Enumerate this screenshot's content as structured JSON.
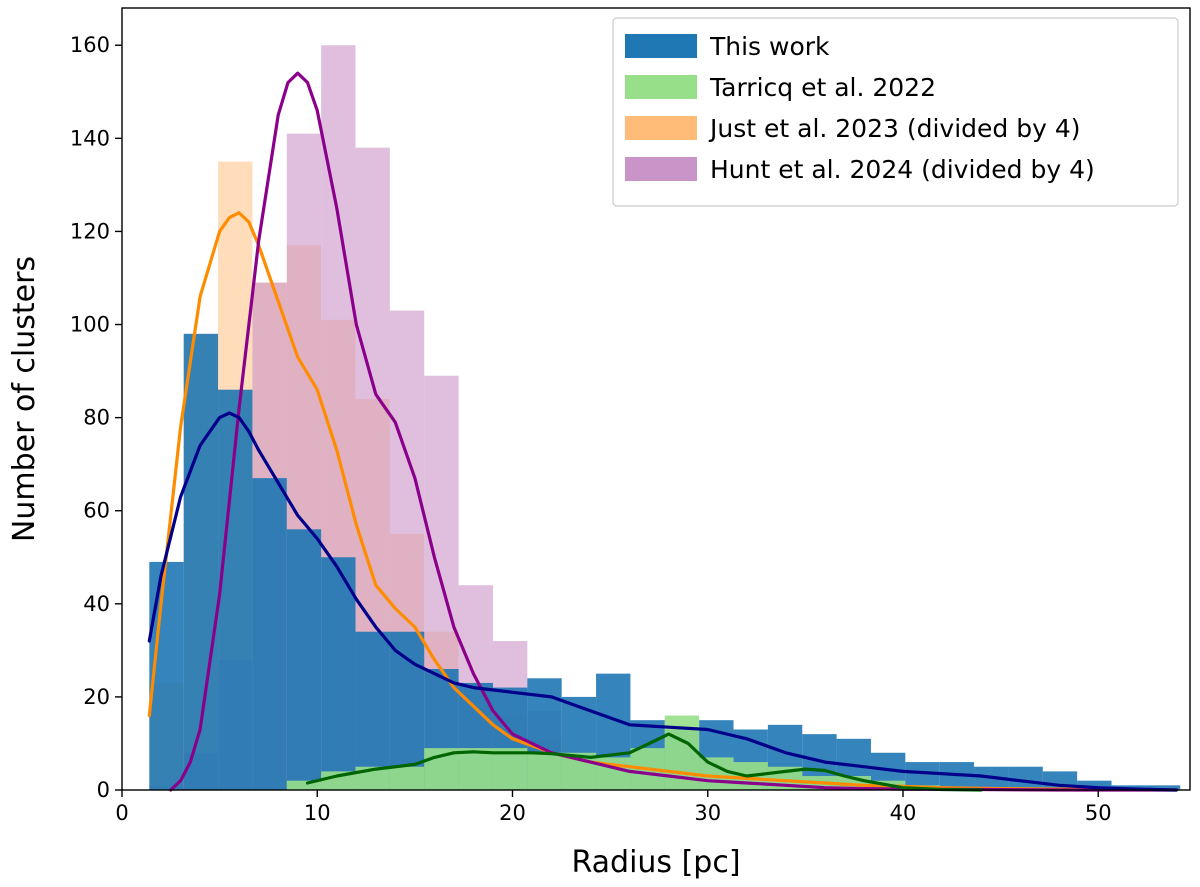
{
  "chart_data": {
    "type": "bar",
    "title": "",
    "xlabel": "Radius [pc]",
    "ylabel": "Number of clusters",
    "xlim": [
      0,
      54.7
    ],
    "ylim": [
      0,
      168
    ],
    "xticks": [
      0,
      10,
      20,
      30,
      40,
      50
    ],
    "yticks": [
      0,
      20,
      40,
      60,
      80,
      100,
      120,
      140,
      160
    ],
    "grid": false,
    "legend_position": "top-right",
    "bin_width": 1.76,
    "bin_start": 1.4,
    "histograms": [
      {
        "name": "Just et al. 2023 (divided by 4)",
        "color": "#ffbb78",
        "opacity": 0.5,
        "values": [
          23,
          98,
          135,
          109,
          117,
          101,
          84,
          55,
          34,
          23,
          16,
          11,
          7,
          5,
          4,
          3,
          2.5,
          2,
          1.5,
          1,
          0.8,
          0.5,
          0.4,
          0.3,
          0.2,
          0.1,
          0.1,
          0.1,
          0.1,
          0
        ]
      },
      {
        "name": "Hunt et al. 2024 (divided by 4)",
        "color": "#c994c7",
        "opacity": 0.6,
        "values": [
          1,
          8,
          28,
          109,
          141,
          160,
          138,
          103,
          89,
          44,
          32,
          17,
          8,
          5,
          3,
          2,
          1.5,
          1,
          0.8,
          0.5,
          0.4,
          0.3,
          0.2,
          0.1,
          0.1,
          0.1,
          0.1,
          0,
          0,
          0
        ]
      },
      {
        "name": "This work",
        "color": "#1f77b4",
        "opacity": 0.9,
        "values": [
          49,
          98,
          86,
          67,
          56,
          50,
          34,
          34,
          26,
          23,
          22,
          24,
          20,
          25,
          15,
          13,
          15,
          13,
          14,
          12,
          11,
          8,
          6,
          6,
          5,
          5,
          4,
          2,
          1,
          1
        ]
      },
      {
        "name": "Tarricq et al. 2022",
        "color": "#98df8a",
        "opacity": 0.9,
        "values": [
          0,
          0,
          0,
          0,
          2,
          4,
          5,
          5,
          9,
          9,
          9,
          8,
          8,
          7,
          9,
          16,
          7,
          6,
          5,
          3,
          3,
          2,
          1,
          0.5,
          0,
          0,
          0,
          0,
          0,
          0
        ]
      }
    ],
    "curves": [
      {
        "name": "Just et al. 2023 KDE",
        "color": "#ff8c00",
        "x": [
          1.4,
          2,
          3,
          4,
          5,
          5.5,
          6,
          6.5,
          7,
          8,
          9,
          10,
          11,
          12,
          13,
          14,
          15,
          16,
          17,
          18,
          19,
          20,
          22,
          24,
          26,
          28,
          30,
          32,
          34,
          36,
          38,
          40,
          42,
          45,
          48,
          51,
          54
        ],
        "y": [
          16,
          40,
          78,
          106,
          120,
          123,
          124,
          122,
          117,
          105,
          93,
          86,
          73,
          57,
          44,
          39,
          35,
          28,
          22,
          18,
          14,
          11,
          8,
          6,
          5,
          4,
          3,
          2.5,
          2,
          1.5,
          1,
          0.8,
          0.5,
          0.3,
          0.2,
          0.1,
          0
        ]
      },
      {
        "name": "Hunt et al. 2024 KDE",
        "color": "#8b008b",
        "x": [
          2.5,
          3,
          3.5,
          4,
          5,
          6,
          7,
          8,
          8.5,
          9,
          9.5,
          10,
          11,
          12,
          13,
          14,
          15,
          16,
          17,
          18,
          19,
          20,
          22,
          24,
          26,
          28,
          30,
          32,
          34,
          36,
          38,
          40,
          44,
          48,
          54
        ],
        "y": [
          0,
          2,
          6,
          13,
          42,
          82,
          118,
          145,
          152,
          154,
          152,
          146,
          125,
          100,
          85,
          79,
          67,
          50,
          35,
          25,
          17,
          12,
          8,
          6,
          4,
          3,
          2,
          1.5,
          1,
          0.5,
          0.3,
          0.2,
          0.1,
          0,
          0
        ]
      },
      {
        "name": "This work KDE",
        "color": "#00008b",
        "x": [
          1.4,
          2,
          3,
          4,
          5,
          5.5,
          6,
          6.5,
          7,
          8,
          9,
          10,
          11,
          12,
          13,
          14,
          15,
          16,
          17,
          18,
          20,
          22,
          24,
          26,
          28,
          30,
          32,
          34,
          36,
          38,
          40,
          42,
          44,
          46,
          48,
          50,
          52,
          54
        ],
        "y": [
          32,
          46,
          63,
          74,
          80,
          81,
          80,
          77,
          73,
          66,
          59,
          54,
          48,
          41,
          35,
          30,
          27,
          25,
          23,
          22,
          21,
          20,
          17,
          14,
          13.5,
          13,
          11,
          8,
          6,
          5,
          4,
          3.5,
          3,
          2,
          1,
          0.5,
          0.2,
          0
        ]
      },
      {
        "name": "Tarricq et al. 2022 KDE",
        "color": "#006400",
        "x": [
          9.5,
          11,
          13,
          15,
          16,
          17,
          18,
          19,
          20,
          21,
          22,
          24,
          26,
          27,
          28,
          29,
          30,
          31,
          32,
          33,
          34,
          35,
          36,
          37,
          38,
          40,
          42,
          44
        ],
        "y": [
          1.5,
          3,
          4.5,
          5.5,
          7,
          8,
          8.2,
          8,
          8,
          8,
          7.8,
          7,
          8,
          10,
          12,
          10,
          6,
          4,
          3,
          3.5,
          4,
          4.5,
          4.2,
          3,
          2,
          0.5,
          0.1,
          0
        ]
      }
    ],
    "legend": [
      {
        "label": "This work",
        "color": "#1f77b4"
      },
      {
        "label": "Tarricq et al. 2022",
        "color": "#98df8a"
      },
      {
        "label": "Just et al. 2023 (divided by 4)",
        "color": "#ffbb78"
      },
      {
        "label": "Hunt et al. 2024 (divided by 4)",
        "color": "#c994c7"
      }
    ]
  }
}
